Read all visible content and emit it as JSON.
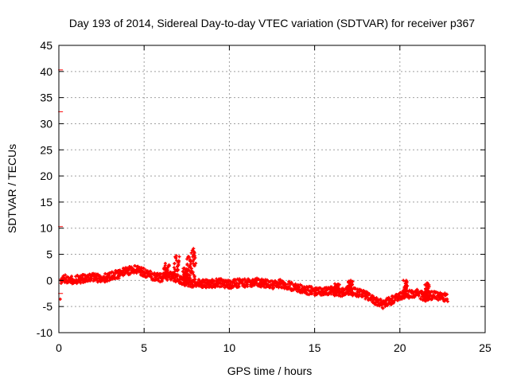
{
  "chart_data": {
    "type": "scatter",
    "title": "Day 193 of 2014, Sidereal Day-to-day VTEC variation (SDTVAR) for receiver p367",
    "xlabel": "GPS time / hours",
    "ylabel": "SDTVAR / TECUs",
    "xlim": [
      0,
      25
    ],
    "ylim": [
      -10,
      45
    ],
    "xticks": [
      0,
      5,
      10,
      15,
      20,
      25
    ],
    "yticks": [
      -10,
      -5,
      0,
      5,
      10,
      15,
      20,
      25,
      30,
      35,
      40,
      45
    ],
    "grid": true,
    "legend": "none",
    "series": [
      {
        "name": "SDTVAR",
        "color": "#ff0000",
        "trend": [
          [
            0.1,
            0.2
          ],
          [
            0.5,
            0.3
          ],
          [
            1.0,
            0.1
          ],
          [
            1.5,
            0.4
          ],
          [
            2.0,
            0.6
          ],
          [
            2.5,
            0.3
          ],
          [
            3.0,
            0.8
          ],
          [
            3.5,
            1.2
          ],
          [
            4.0,
            1.8
          ],
          [
            4.5,
            2.2
          ],
          [
            5.0,
            1.5
          ],
          [
            5.5,
            0.8
          ],
          [
            6.0,
            0.5
          ],
          [
            6.5,
            0.9
          ],
          [
            7.0,
            0.3
          ],
          [
            7.5,
            -0.4
          ],
          [
            8.0,
            -0.5
          ],
          [
            8.5,
            -0.6
          ],
          [
            9.0,
            -0.6
          ],
          [
            9.5,
            -0.4
          ],
          [
            10.0,
            -0.8
          ],
          [
            10.5,
            -0.5
          ],
          [
            11.0,
            -0.5
          ],
          [
            11.5,
            -0.3
          ],
          [
            12.0,
            -0.5
          ],
          [
            12.5,
            -0.8
          ],
          [
            13.0,
            -0.6
          ],
          [
            13.5,
            -1.0
          ],
          [
            14.0,
            -1.5
          ],
          [
            14.5,
            -1.8
          ],
          [
            15.0,
            -2.1
          ],
          [
            15.5,
            -2.2
          ],
          [
            16.0,
            -2.0
          ],
          [
            16.5,
            -2.4
          ],
          [
            17.0,
            -2.0
          ],
          [
            17.5,
            -2.3
          ],
          [
            18.0,
            -2.8
          ],
          [
            18.5,
            -3.8
          ],
          [
            19.0,
            -4.6
          ],
          [
            19.5,
            -3.8
          ],
          [
            20.0,
            -3.0
          ],
          [
            20.5,
            -2.6
          ],
          [
            21.0,
            -2.5
          ],
          [
            21.5,
            -3.2
          ],
          [
            22.0,
            -2.8
          ],
          [
            22.5,
            -3.1
          ],
          [
            22.8,
            -3.4
          ]
        ],
        "spikes": [
          [
            6.8,
            4.8
          ],
          [
            7.3,
            2.5
          ],
          [
            7.5,
            5.0
          ],
          [
            7.8,
            6.0
          ],
          [
            6.2,
            3.0
          ],
          [
            17.0,
            0.0
          ],
          [
            20.2,
            0.0
          ],
          [
            21.5,
            -0.5
          ],
          [
            16.2,
            -0.8
          ]
        ],
        "outliers": [
          [
            0.1,
            40.3
          ],
          [
            0.1,
            32.3
          ],
          [
            0.1,
            10.3
          ],
          [
            0.1,
            -2.5
          ]
        ]
      }
    ]
  }
}
